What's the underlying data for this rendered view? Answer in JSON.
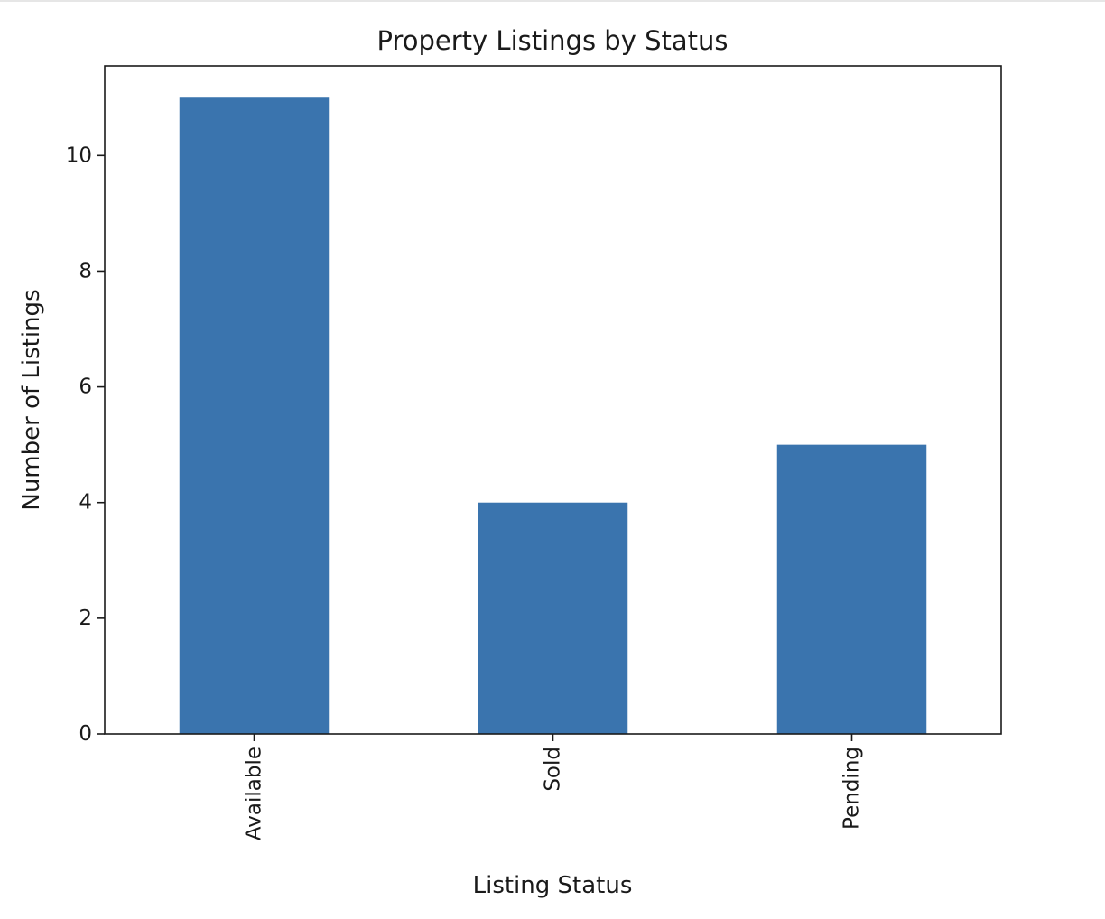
{
  "chart_data": {
    "type": "bar",
    "title": "Property Listings by Status",
    "xlabel": "Listing Status",
    "ylabel": "Number of Listings",
    "categories": [
      "Available",
      "Sold",
      "Pending"
    ],
    "values": [
      11,
      4,
      5
    ],
    "ylim": [
      0,
      11.55
    ],
    "yticks": [
      0,
      2,
      4,
      6,
      8,
      10
    ],
    "bar_color": "#3a74ae",
    "grid": false,
    "legend": "none",
    "xtick_rotation": 90
  }
}
